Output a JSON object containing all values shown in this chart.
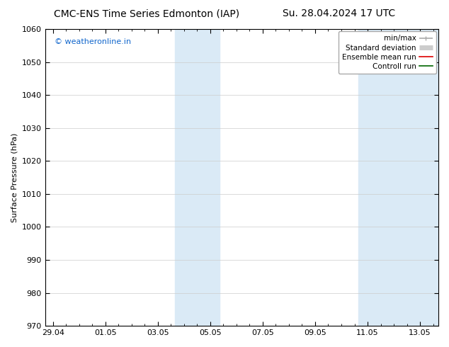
{
  "title_left": "CMC-ENS Time Series Edmonton (IAP)",
  "title_right": "Su. 28.04.2024 17 UTC",
  "ylabel": "Surface Pressure (hPa)",
  "ylim": [
    970,
    1060
  ],
  "yticks": [
    970,
    980,
    990,
    1000,
    1010,
    1020,
    1030,
    1040,
    1050,
    1060
  ],
  "xtick_labels": [
    "29.04",
    "01.05",
    "03.05",
    "05.05",
    "07.05",
    "09.05",
    "11.05",
    "13.05"
  ],
  "x_positions": [
    0,
    2,
    4,
    6,
    8,
    10,
    12,
    14
  ],
  "xlim": [
    -0.3,
    14.7
  ],
  "background_color": "#ffffff",
  "band_color": "#daeaf6",
  "shaded_bands": [
    {
      "x_start": 4.65,
      "x_end": 6.35
    },
    {
      "x_start": 11.65,
      "x_end": 14.7
    }
  ],
  "watermark_text": "© weatheronline.in",
  "watermark_color": "#1166cc",
  "legend_items": [
    {
      "label": "min/max",
      "color": "#aaaaaa",
      "lw": 1.2
    },
    {
      "label": "Standard deviation",
      "color": "#cccccc",
      "lw": 5
    },
    {
      "label": "Ensemble mean run",
      "color": "#dd0000",
      "lw": 1.2
    },
    {
      "label": "Controll run",
      "color": "#006600",
      "lw": 1.2
    }
  ],
  "title_fontsize": 10,
  "axis_label_fontsize": 8,
  "tick_fontsize": 8,
  "legend_fontsize": 7.5,
  "watermark_fontsize": 8
}
